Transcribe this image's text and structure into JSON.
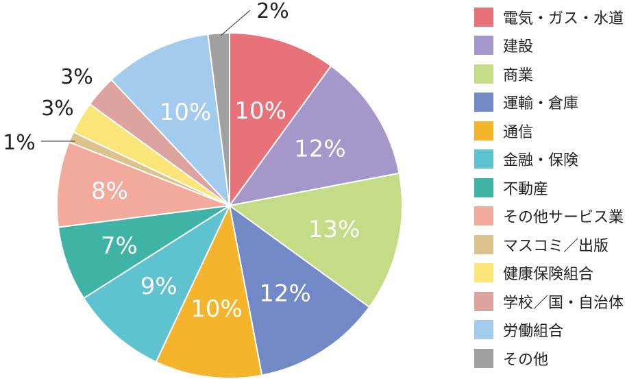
{
  "chart_data": {
    "type": "pie",
    "categories": [
      "電気・ガス・水道",
      "建設",
      "商業",
      "運輸・倉庫",
      "通信",
      "金融・保険",
      "不動産",
      "その他サービス業",
      "マスコミ／出版",
      "健康保険組合",
      "学校／国・自治体",
      "労働組合",
      "その他"
    ],
    "values": [
      10,
      12,
      13,
      12,
      10,
      9,
      7,
      8,
      1,
      3,
      3,
      10,
      2
    ],
    "labels": [
      "10%",
      "12%",
      "13%",
      "12%",
      "10%",
      "9%",
      "7%",
      "8%",
      "1%",
      "3%",
      "3%",
      "10%",
      "2%"
    ],
    "colors": [
      "#e8727a",
      "#a597ca",
      "#c4dc86",
      "#7389c6",
      "#f4b52c",
      "#5ec2cf",
      "#3fb3a6",
      "#f2aa9c",
      "#dcc38c",
      "#fbe579",
      "#dca39f",
      "#a3cbed",
      "#a0a0a0"
    ],
    "legend_position": "right"
  }
}
